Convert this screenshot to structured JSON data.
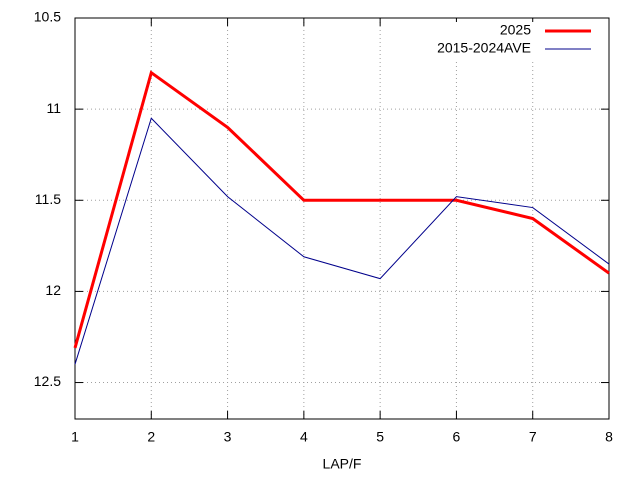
{
  "chart_data": {
    "type": "line",
    "x_label": "LAP/F",
    "x": [
      1,
      2,
      3,
      4,
      5,
      6,
      7,
      8
    ],
    "series": [
      {
        "name": "2025",
        "color": "#ff0000",
        "width": 3,
        "values": [
          12.31,
          10.8,
          11.1,
          11.5,
          11.5,
          11.5,
          11.6,
          11.9
        ]
      },
      {
        "name": "2015-2024AVE",
        "color": "#00008b",
        "width": 1,
        "values": [
          12.4,
          11.05,
          11.48,
          11.81,
          11.93,
          11.48,
          11.54,
          11.85
        ]
      }
    ],
    "xlim": [
      1,
      8
    ],
    "xticks": [
      1,
      2,
      3,
      4,
      5,
      6,
      7,
      8
    ],
    "ylim": [
      10.5,
      12.7
    ],
    "yticks": [
      10.5,
      11,
      11.5,
      12,
      12.5
    ],
    "y_reversed": true,
    "grid": true,
    "legend": "top-right"
  }
}
